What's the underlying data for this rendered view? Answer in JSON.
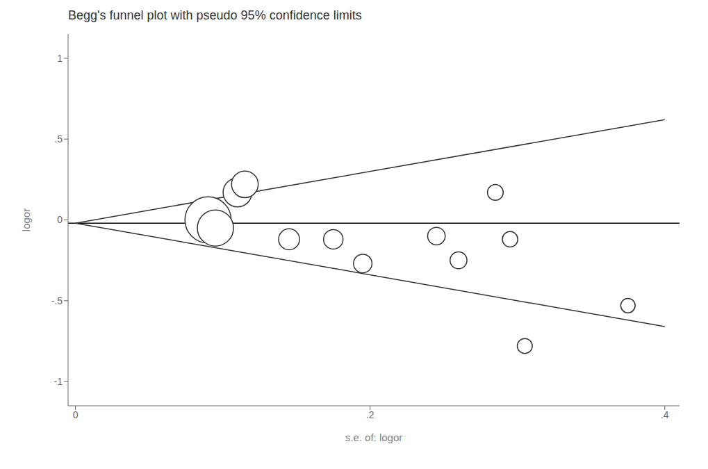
{
  "chart_data": {
    "type": "scatter",
    "title": "Begg's funnel plot with pseudo 95% confidence limits",
    "xlabel": "s.e. of: logor",
    "ylabel": "logor",
    "xlim": [
      -0.005,
      0.41
    ],
    "ylim": [
      -1.15,
      1.15
    ],
    "xticks": [
      0,
      {
        "value": 0.2,
        "label": ".2"
      },
      {
        "value": 0.4,
        "label": ".4"
      }
    ],
    "yticks": [
      -1,
      {
        "value": -0.5,
        "label": "-.5"
      },
      0,
      {
        "value": 0.5,
        "label": ".5"
      },
      1
    ],
    "grid": false,
    "hline": {
      "value": -0.02,
      "color": "#000000"
    },
    "series": [
      {
        "type": "line",
        "color": "#333333",
        "x": [
          0.0,
          0.4
        ],
        "values": [
          -0.02,
          0.62
        ]
      },
      {
        "type": "line",
        "color": "#333333",
        "x": [
          0.0,
          0.4
        ],
        "values": [
          -0.02,
          -0.66
        ]
      },
      {
        "type": "scatter",
        "color": "#333333",
        "marker": "circle_open",
        "x": [
          0.09,
          0.095,
          0.11,
          0.115,
          0.145,
          0.175,
          0.195,
          0.245,
          0.26,
          0.285,
          0.295,
          0.305,
          0.375
        ],
        "values": [
          0.0,
          -0.05,
          0.17,
          0.22,
          -0.12,
          -0.12,
          -0.27,
          -0.1,
          -0.25,
          0.17,
          -0.12,
          -0.78,
          -0.53
        ],
        "sizes": [
          1800,
          1100,
          700,
          600,
          370,
          320,
          290,
          260,
          240,
          210,
          200,
          190,
          175
        ]
      }
    ]
  }
}
